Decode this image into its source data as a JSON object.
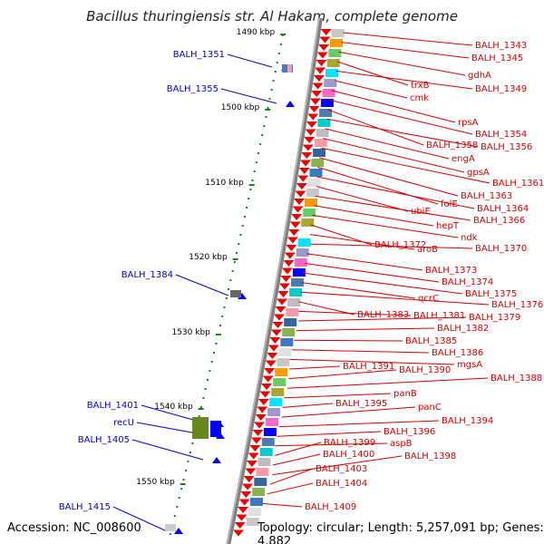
{
  "title": "Bacillus thuringiensis str. Al Hakam, complete genome",
  "footer": {
    "accession": "Accession: NC_008600",
    "summary": "Topology: circular; Length: 5,257,091 bp; Genes: 4,882"
  },
  "colors": {
    "right_labels": "#d40000",
    "left_labels": "#0000cc",
    "backbone": "#808080",
    "ticks": "#208020"
  },
  "scale_labels": [
    "1490 kbp",
    "1500 kbp",
    "1510 kbp",
    "1520 kbp",
    "1530 kbp",
    "1540 kbp",
    "1550 kbp"
  ],
  "right_genes": [
    "BALH_1343",
    "BALH_1345",
    "gdhA",
    "trxB",
    "BALH_1349",
    "cmk",
    "rpsA",
    "BALH_1354",
    "BALH_1358",
    "BALH_1356",
    "engA",
    "gpsA",
    "BALH_1361",
    "BALH_1363",
    "folE",
    "BALH_1364",
    "ubiE",
    "BALH_1366",
    "hepT",
    "ndk",
    "BALH_1372",
    "aroB",
    "BALH_1370",
    "BALH_1373",
    "BALH_1374",
    "BALH_1375",
    "qcrC",
    "BALH_1376",
    "BALH_1383",
    "BALH_1381",
    "BALH_1379",
    "BALH_1382",
    "BALH_1385",
    "BALH_1386",
    "mgsA",
    "BALH_1391",
    "BALH_1390",
    "BALH_1388",
    "panB",
    "BALH_1395",
    "panC",
    "BALH_1394",
    "BALH_1396",
    "aspB",
    "BALH_1399",
    "BALH_1400",
    "BALH_1398",
    "BALH_1403",
    "BALH_1404",
    "BALH_1409"
  ],
  "left_genes": [
    "BALH_1351",
    "BALH_1355",
    "BALH_1384",
    "BALH_1401",
    "recU",
    "BALH_1405",
    "BALH_1415"
  ]
}
